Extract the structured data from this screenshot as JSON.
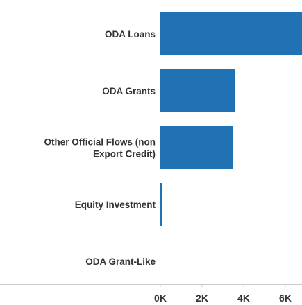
{
  "colors": {
    "bar": "#2171b5",
    "axis": "#cccccc",
    "text": "#333333"
  },
  "chart_data": {
    "type": "bar",
    "orientation": "horizontal",
    "categories": [
      "ODA Loans",
      "ODA Grants",
      "Other Official Flows (non Export Credit)",
      "Equity Investment",
      "ODA Grant-Like"
    ],
    "category_lines": [
      [
        "ODA Loans"
      ],
      [
        "ODA Grants"
      ],
      [
        "Other Official Flows (non",
        "Export Credit)"
      ],
      [
        "Equity Investment"
      ],
      [
        "ODA Grant-Like"
      ]
    ],
    "values": [
      6800,
      3600,
      3500,
      30,
      0
    ],
    "xlim": [
      0,
      6800
    ],
    "xticks": [
      0,
      2000,
      4000,
      6000
    ],
    "xtick_labels": [
      "0K",
      "2K",
      "4K",
      "6K"
    ],
    "grid": false,
    "legend": "none"
  }
}
